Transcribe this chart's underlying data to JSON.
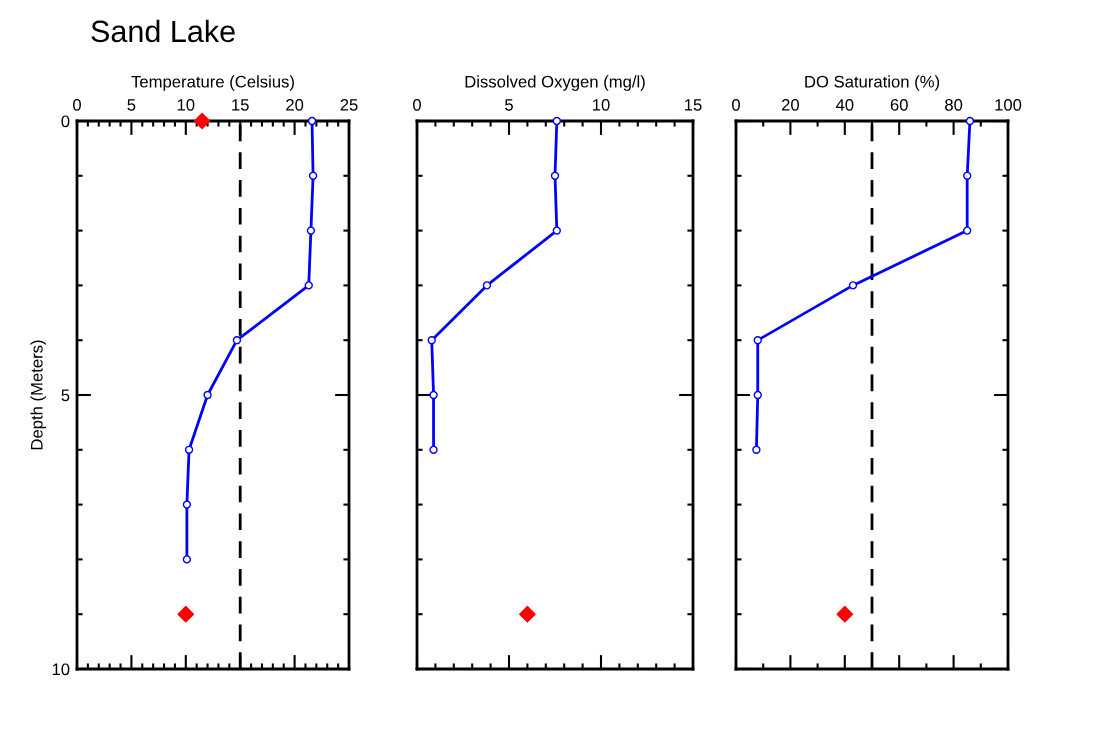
{
  "chart_data": [
    {
      "type": "line",
      "title": "Sand Lake",
      "xlabel": "Temperature (Celsius)",
      "ylabel": "Depth (Meters)",
      "xlim": [
        0,
        25
      ],
      "ylim": [
        10,
        0
      ],
      "xticks": [
        0,
        {
          "value": 1,
          "label": null
        },
        {
          "value": 2,
          "label": null
        },
        {
          "value": 3,
          "label": null
        },
        {
          "value": 4,
          "label": null
        },
        5,
        {
          "value": 6,
          "label": null
        },
        {
          "value": 7,
          "label": null
        },
        {
          "value": 8,
          "label": null
        },
        {
          "value": 9,
          "label": null
        },
        10,
        {
          "value": 11,
          "label": null
        },
        {
          "value": 12,
          "label": null
        },
        {
          "value": 13,
          "label": null
        },
        {
          "value": 14,
          "label": null
        },
        15,
        {
          "value": 16,
          "label": null
        },
        {
          "value": 17,
          "label": null
        },
        {
          "value": 18,
          "label": null
        },
        {
          "value": 19,
          "label": null
        },
        20,
        {
          "value": 21,
          "label": null
        },
        {
          "value": 22,
          "label": null
        },
        {
          "value": 23,
          "label": null
        },
        {
          "value": 24,
          "label": null
        },
        25
      ],
      "yticks": [
        0,
        {
          "value": 1,
          "label": null
        },
        {
          "value": 2,
          "label": null
        },
        {
          "value": 3,
          "label": null
        },
        {
          "value": 4,
          "label": null
        },
        5,
        {
          "value": 6,
          "label": null
        },
        {
          "value": 7,
          "label": null
        },
        {
          "value": 8,
          "label": null
        },
        {
          "value": 9,
          "label": null
        },
        10
      ],
      "grid": false,
      "legend": false,
      "series": [
        {
          "color": "#0000ff",
          "marker": "circle",
          "line_style": "solid",
          "x": [
            21.6,
            21.7,
            21.5,
            21.3,
            14.7,
            12.0,
            10.3,
            10.1,
            10.1
          ],
          "values": [
            0,
            1,
            2,
            3,
            4,
            5,
            6,
            7,
            8
          ]
        },
        {
          "type": "scatter",
          "color": "#ff0000",
          "marker": "diamond",
          "x": [
            11.5,
            10.0
          ],
          "values": [
            0,
            9
          ]
        }
      ],
      "ref_lines": [
        {
          "axis": "x",
          "value": 15,
          "color": "#000000",
          "line_style": "dashed"
        }
      ]
    },
    {
      "type": "line",
      "xlabel": "Dissolved Oxygen (mg/l)",
      "xlim": [
        0,
        15
      ],
      "ylim": [
        10,
        0
      ],
      "tick_labels": "x",
      "xticks": [
        0,
        {
          "value": 1,
          "label": null
        },
        {
          "value": 2,
          "label": null
        },
        {
          "value": 3,
          "label": null
        },
        {
          "value": 4,
          "label": null
        },
        5,
        {
          "value": 6,
          "label": null
        },
        {
          "value": 7,
          "label": null
        },
        {
          "value": 8,
          "label": null
        },
        {
          "value": 9,
          "label": null
        },
        10,
        {
          "value": 11,
          "label": null
        },
        {
          "value": 12,
          "label": null
        },
        {
          "value": 13,
          "label": null
        },
        {
          "value": 14,
          "label": null
        },
        15
      ],
      "yticks": [
        0,
        {
          "value": 1,
          "label": null
        },
        {
          "value": 2,
          "label": null
        },
        {
          "value": 3,
          "label": null
        },
        {
          "value": 4,
          "label": null
        },
        5,
        {
          "value": 6,
          "label": null
        },
        {
          "value": 7,
          "label": null
        },
        {
          "value": 8,
          "label": null
        },
        {
          "value": 9,
          "label": null
        },
        10
      ],
      "grid": false,
      "legend": false,
      "series": [
        {
          "color": "#0000ff",
          "marker": "circle",
          "line_style": "solid",
          "x": [
            7.6,
            7.5,
            7.6,
            3.8,
            0.8,
            0.9,
            0.9
          ],
          "values": [
            0,
            1,
            2,
            3,
            4,
            5,
            6
          ]
        },
        {
          "type": "scatter",
          "color": "#ff0000",
          "marker": "diamond",
          "x": [
            6.0
          ],
          "values": [
            9
          ]
        }
      ]
    },
    {
      "type": "line",
      "xlabel": "DO Saturation (%)",
      "xlim": [
        0,
        100
      ],
      "ylim": [
        10,
        0
      ],
      "tick_labels": "x",
      "xticks": [
        0,
        {
          "value": 10,
          "label": null
        },
        20,
        {
          "value": 30,
          "label": null
        },
        40,
        {
          "value": 50,
          "label": null
        },
        60,
        {
          "value": 70,
          "label": null
        },
        80,
        {
          "value": 90,
          "label": null
        },
        100
      ],
      "yticks": [
        0,
        {
          "value": 1,
          "label": null
        },
        {
          "value": 2,
          "label": null
        },
        {
          "value": 3,
          "label": null
        },
        {
          "value": 4,
          "label": null
        },
        5,
        {
          "value": 6,
          "label": null
        },
        {
          "value": 7,
          "label": null
        },
        {
          "value": 8,
          "label": null
        },
        {
          "value": 9,
          "label": null
        },
        10
      ],
      "grid": false,
      "legend": false,
      "series": [
        {
          "color": "#0000ff",
          "marker": "circle",
          "line_style": "solid",
          "x": [
            86,
            85,
            85,
            43,
            8,
            8,
            7.5
          ],
          "values": [
            0,
            1,
            2,
            3,
            4,
            5,
            6
          ]
        },
        {
          "type": "scatter",
          "color": "#ff0000",
          "marker": "diamond",
          "x": [
            40
          ],
          "values": [
            9
          ]
        }
      ],
      "ref_lines": [
        {
          "axis": "x",
          "value": 50,
          "color": "#000000",
          "line_style": "dashed"
        }
      ]
    }
  ]
}
